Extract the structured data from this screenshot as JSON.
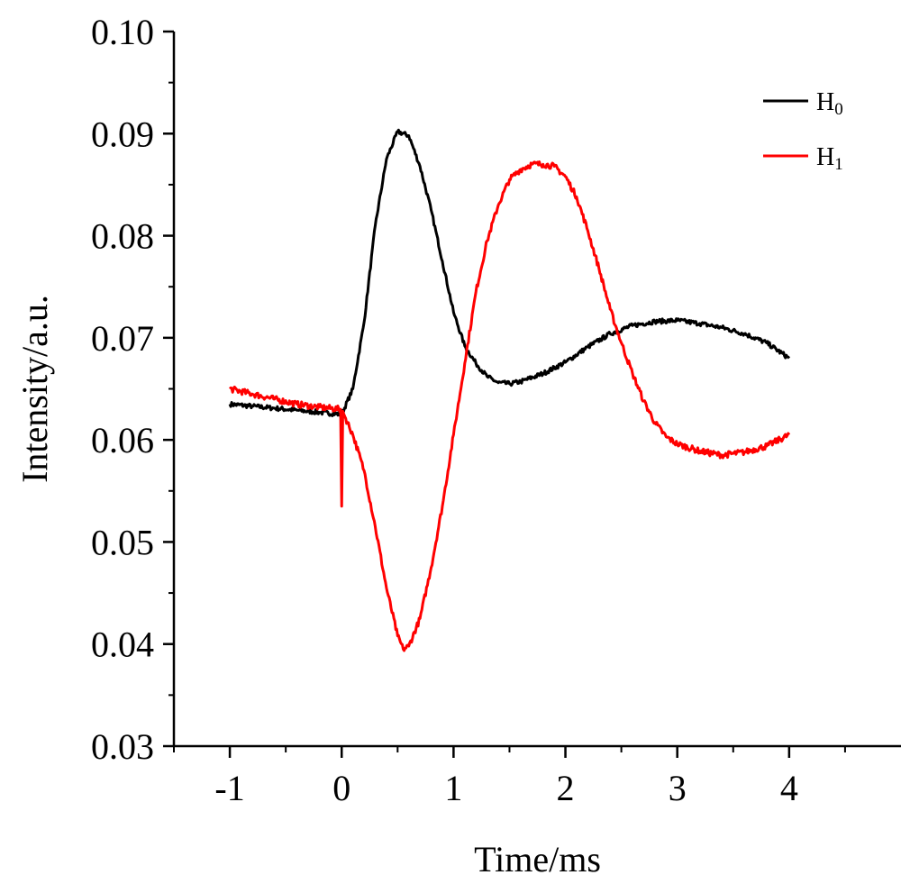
{
  "chart_data": {
    "type": "line",
    "title": "",
    "xlabel": "Time/ms",
    "ylabel": "Intensity/a.u.",
    "xlim": [
      -1.5,
      5.0
    ],
    "ylim": [
      0.03,
      0.1
    ],
    "x_ticks": [
      -1,
      0,
      1,
      2,
      3,
      4
    ],
    "x_tick_labels": [
      "-1",
      "0",
      "1",
      "2",
      "3",
      "4"
    ],
    "y_ticks": [
      0.03,
      0.04,
      0.05,
      0.06,
      0.07,
      0.08,
      0.09,
      0.1
    ],
    "y_tick_labels": [
      "0.03",
      "0.04",
      "0.05",
      "0.06",
      "0.07",
      "0.08",
      "0.09",
      "0.10"
    ],
    "grid": false,
    "legend_position": "top-right",
    "series": [
      {
        "name": "H",
        "subscript": "0",
        "color": "#000000",
        "x": [
          -1.0,
          -0.8,
          -0.6,
          -0.4,
          -0.2,
          0.0,
          0.1,
          0.2,
          0.3,
          0.4,
          0.5,
          0.6,
          0.7,
          0.8,
          0.9,
          1.0,
          1.1,
          1.2,
          1.3,
          1.4,
          1.5,
          1.6,
          1.8,
          2.0,
          2.2,
          2.4,
          2.6,
          2.8,
          3.0,
          3.2,
          3.4,
          3.6,
          3.8,
          4.0
        ],
        "y": [
          0.0635,
          0.0633,
          0.0631,
          0.0629,
          0.0627,
          0.0625,
          0.065,
          0.0715,
          0.081,
          0.0875,
          0.0902,
          0.0898,
          0.0868,
          0.0825,
          0.0775,
          0.0725,
          0.0692,
          0.0675,
          0.0662,
          0.0656,
          0.0655,
          0.0657,
          0.0665,
          0.0676,
          0.0691,
          0.0704,
          0.0712,
          0.0716,
          0.0717,
          0.0714,
          0.071,
          0.0704,
          0.0695,
          0.068
        ]
      },
      {
        "name": "H",
        "subscript": "1",
        "color": "#ff0000",
        "x": [
          -1.0,
          -0.8,
          -0.6,
          -0.4,
          -0.2,
          -0.01,
          0.0,
          0.01,
          0.02,
          0.1,
          0.2,
          0.3,
          0.4,
          0.5,
          0.55,
          0.6,
          0.7,
          0.8,
          0.9,
          1.0,
          1.1,
          1.2,
          1.3,
          1.4,
          1.5,
          1.6,
          1.7,
          1.8,
          1.9,
          2.0,
          2.1,
          2.2,
          2.3,
          2.4,
          2.5,
          2.6,
          2.7,
          2.8,
          2.9,
          3.0,
          3.2,
          3.4,
          3.6,
          3.8,
          4.0
        ],
        "y": [
          0.065,
          0.0645,
          0.064,
          0.0635,
          0.0632,
          0.063,
          0.0535,
          0.0628,
          0.0625,
          0.0605,
          0.057,
          0.0515,
          0.0455,
          0.0408,
          0.0395,
          0.0398,
          0.0425,
          0.0475,
          0.0535,
          0.0605,
          0.0675,
          0.0745,
          0.0795,
          0.083,
          0.0855,
          0.0865,
          0.087,
          0.087,
          0.0868,
          0.0858,
          0.0838,
          0.0805,
          0.0768,
          0.0728,
          0.0695,
          0.0665,
          0.0638,
          0.0617,
          0.0603,
          0.0596,
          0.0589,
          0.0585,
          0.0588,
          0.0594,
          0.0605
        ]
      }
    ]
  }
}
